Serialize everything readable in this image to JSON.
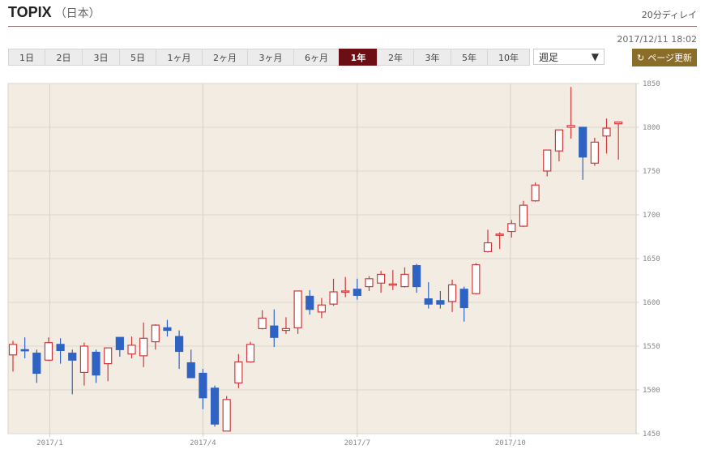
{
  "header": {
    "title": "TOPIX",
    "subtitle": "（日本）",
    "delay": "20分ディレイ",
    "timestamp": "2017/12/11 18:02"
  },
  "periods": [
    {
      "label": "1日"
    },
    {
      "label": "2日"
    },
    {
      "label": "3日"
    },
    {
      "label": "5日"
    },
    {
      "label": "1ヶ月"
    },
    {
      "label": "2ヶ月"
    },
    {
      "label": "3ヶ月"
    },
    {
      "label": "6ヶ月"
    },
    {
      "label": "1年",
      "active": true
    },
    {
      "label": "2年"
    },
    {
      "label": "3年"
    },
    {
      "label": "5年"
    },
    {
      "label": "10年"
    }
  ],
  "interval_select": {
    "value": "週足",
    "arrow": "▼"
  },
  "refresh_button": {
    "icon": "refresh-icon",
    "label": "ページ更新"
  },
  "colors": {
    "up": "#d0393b",
    "down": "#2f63c3",
    "plot_bg": "#f2ece3",
    "active": "#6b0f14",
    "refresh": "#8b6d2a"
  },
  "chart_data": {
    "type": "candlestick",
    "ylim": [
      1450,
      1850
    ],
    "yticks": [
      1450,
      1500,
      1550,
      1600,
      1650,
      1700,
      1750,
      1800,
      1850
    ],
    "xticks": [
      {
        "label": "2017/1",
        "index": 3.1
      },
      {
        "label": "2017/4",
        "index": 16
      },
      {
        "label": "2017/7",
        "index": 29
      },
      {
        "label": "2017/10",
        "index": 41.9
      }
    ],
    "grid": true,
    "ohlc": [
      [
        1540,
        1556,
        1521,
        1552
      ],
      [
        1546,
        1560,
        1536,
        1545
      ],
      [
        1542,
        1546,
        1508,
        1519
      ],
      [
        1534,
        1560,
        1533,
        1554
      ],
      [
        1552,
        1559,
        1530,
        1545
      ],
      [
        1542,
        1546,
        1495,
        1534
      ],
      [
        1520,
        1554,
        1505,
        1550
      ],
      [
        1543,
        1546,
        1508,
        1517
      ],
      [
        1530,
        1548,
        1510,
        1548
      ],
      [
        1560,
        1560,
        1538,
        1546
      ],
      [
        1541,
        1561,
        1536,
        1551
      ],
      [
        1539,
        1577,
        1526,
        1559
      ],
      [
        1555,
        1575,
        1546,
        1574
      ],
      [
        1571,
        1580,
        1561,
        1568
      ],
      [
        1561,
        1568,
        1524,
        1544
      ],
      [
        1531,
        1546,
        1514,
        1514
      ],
      [
        1519,
        1524,
        1478,
        1491
      ],
      [
        1502,
        1505,
        1458,
        1461
      ],
      [
        1453,
        1493,
        1453,
        1489
      ],
      [
        1508,
        1541,
        1502,
        1532
      ],
      [
        1532,
        1555,
        1531,
        1552
      ],
      [
        1570,
        1591,
        1569,
        1582
      ],
      [
        1573,
        1592,
        1549,
        1560
      ],
      [
        1568,
        1583,
        1564,
        1570
      ],
      [
        1571,
        1613,
        1564,
        1613
      ],
      [
        1607,
        1614,
        1586,
        1592
      ],
      [
        1589,
        1605,
        1582,
        1597
      ],
      [
        1598,
        1627,
        1596,
        1612
      ],
      [
        1612,
        1629,
        1606,
        1613
      ],
      [
        1615,
        1627,
        1603,
        1608
      ],
      [
        1618,
        1630,
        1613,
        1627
      ],
      [
        1622,
        1636,
        1611,
        1632
      ],
      [
        1620,
        1637,
        1614,
        1621
      ],
      [
        1618,
        1640,
        1617,
        1632
      ],
      [
        1642,
        1644,
        1611,
        1618
      ],
      [
        1604,
        1623,
        1593,
        1598
      ],
      [
        1602,
        1613,
        1593,
        1598
      ],
      [
        1601,
        1626,
        1589,
        1620
      ],
      [
        1615,
        1618,
        1578,
        1594
      ],
      [
        1610,
        1645,
        1609,
        1643
      ],
      [
        1658,
        1683,
        1657,
        1668
      ],
      [
        1677,
        1680,
        1661,
        1678
      ],
      [
        1681,
        1694,
        1674,
        1690
      ],
      [
        1687,
        1716,
        1686,
        1711
      ],
      [
        1716,
        1737,
        1715,
        1734
      ],
      [
        1750,
        1774,
        1744,
        1774
      ],
      [
        1773,
        1797,
        1761,
        1797
      ],
      [
        1800,
        1846,
        1787,
        1802
      ],
      [
        1800,
        1800,
        1740,
        1766
      ],
      [
        1759,
        1788,
        1756,
        1783
      ],
      [
        1790,
        1810,
        1770,
        1799
      ],
      [
        1804,
        1806,
        1763,
        1806
      ]
    ]
  }
}
